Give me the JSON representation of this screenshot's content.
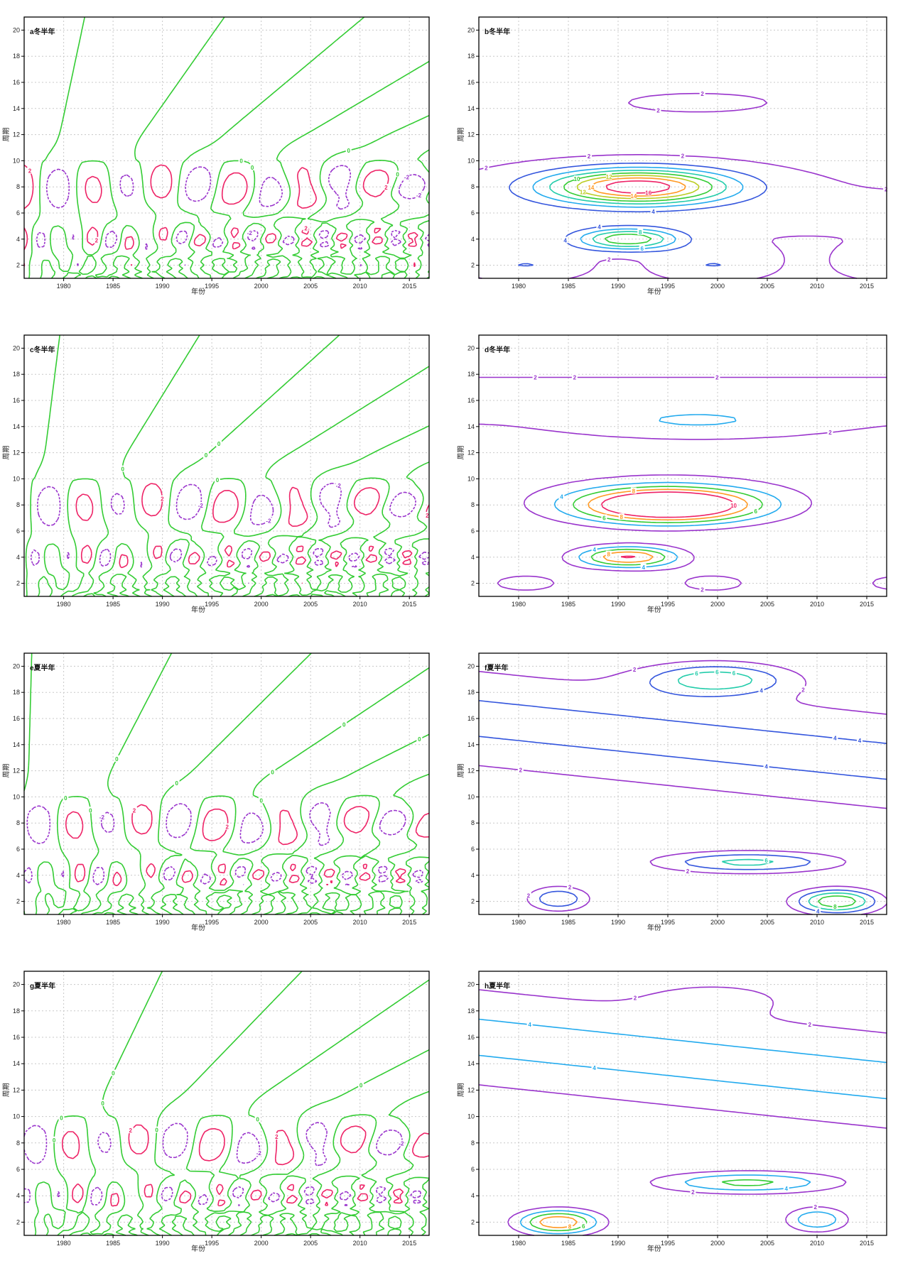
{
  "figure": {
    "panels": [
      {
        "title": "a冬半年"
      },
      {
        "title": "b冬半年"
      },
      {
        "title": "c冬半年"
      },
      {
        "title": "d冬半年"
      },
      {
        "title": "e夏半年"
      },
      {
        "title": "f夏半年"
      },
      {
        "title": "g夏半年"
      },
      {
        "title": "h夏半年"
      }
    ]
  },
  "chart_data": [
    {
      "type": "contour",
      "title": "a冬半年",
      "xlabel": "年份",
      "ylabel": "周期",
      "xlim": [
        1976,
        2017
      ],
      "ylim": [
        1,
        21
      ],
      "xticks": [
        1980,
        1985,
        1990,
        1995,
        2000,
        2005,
        2010,
        2015
      ],
      "yticks": [
        2,
        4,
        6,
        8,
        10,
        12,
        14,
        16,
        18,
        20
      ],
      "grid": true,
      "contour_levels": [
        {
          "value": -2,
          "color": "#9933cc"
        },
        {
          "value": 0,
          "color": "#33cc33"
        },
        {
          "value": 2,
          "color": "#ee2266"
        }
      ],
      "contour_labels": [
        "2",
        "-2",
        "2",
        "-2",
        "2",
        "-2",
        "2",
        "0",
        "0",
        "0",
        "0"
      ]
    },
    {
      "type": "contour",
      "title": "b冬半年",
      "xlabel": "年份",
      "ylabel": "周期",
      "xlim": [
        1976,
        2017
      ],
      "ylim": [
        1,
        21
      ],
      "xticks": [
        1980,
        1985,
        1990,
        1995,
        2000,
        2005,
        2010,
        2015
      ],
      "yticks": [
        2,
        4,
        6,
        8,
        10,
        12,
        14,
        16,
        18,
        20
      ],
      "grid": true,
      "contour_levels": [
        {
          "value": 2,
          "color": "#9933cc"
        },
        {
          "value": 4,
          "color": "#3355dd"
        },
        {
          "value": 6,
          "color": "#22aaee"
        },
        {
          "value": 8,
          "color": "#22ccaa"
        },
        {
          "value": 10,
          "color": "#33cc33"
        },
        {
          "value": 12,
          "color": "#bbcc22"
        },
        {
          "value": 14,
          "color": "#ff9922"
        },
        {
          "value": 16,
          "color": "#ee2266"
        }
      ],
      "peaks": [
        {
          "x": 1992,
          "y": 8,
          "value": 16
        },
        {
          "x": 1991,
          "y": 4,
          "value": 10
        }
      ],
      "contour_labels": [
        "2",
        "2",
        "2",
        "4",
        "6",
        "12",
        "14",
        "16",
        "14",
        "12",
        "4",
        "2",
        "2",
        "8",
        "10",
        "4",
        "2",
        "2"
      ]
    },
    {
      "type": "contour",
      "title": "c冬半年",
      "xlabel": "年份",
      "ylabel": "周期",
      "xlim": [
        1976,
        2017
      ],
      "ylim": [
        1,
        21
      ],
      "xticks": [
        1980,
        1985,
        1990,
        1995,
        2000,
        2005,
        2010,
        2015
      ],
      "yticks": [
        2,
        4,
        6,
        8,
        10,
        12,
        14,
        16,
        18,
        20
      ],
      "grid": true,
      "contour_levels": [
        {
          "value": -2,
          "color": "#9933cc"
        },
        {
          "value": 0,
          "color": "#33cc33"
        },
        {
          "value": 2,
          "color": "#ee2266"
        }
      ],
      "contour_labels": [
        "-2",
        "2",
        "-2",
        "2",
        "-2",
        "0",
        "0",
        "0",
        "0"
      ]
    },
    {
      "type": "contour",
      "title": "d冬半年",
      "xlabel": "年份",
      "ylabel": "周期",
      "xlim": [
        1976,
        2017
      ],
      "ylim": [
        1,
        21
      ],
      "xticks": [
        1980,
        1985,
        1990,
        1995,
        2000,
        2005,
        2010,
        2015
      ],
      "yticks": [
        2,
        4,
        6,
        8,
        10,
        12,
        14,
        16,
        18,
        20
      ],
      "grid": true,
      "contour_levels": [
        {
          "value": 2,
          "color": "#9933cc"
        },
        {
          "value": 4,
          "color": "#22aaee"
        },
        {
          "value": 6,
          "color": "#33cc33"
        },
        {
          "value": 8,
          "color": "#ff9922"
        },
        {
          "value": 10,
          "color": "#ee2266"
        }
      ],
      "peaks": [
        {
          "x": 1994,
          "y": 7,
          "value": 10
        }
      ],
      "contour_labels": [
        "2",
        "2",
        "4",
        "2",
        "4",
        "6",
        "8",
        "10",
        "8",
        "6",
        "8",
        "4",
        "2",
        "2"
      ]
    },
    {
      "type": "contour",
      "title": "e夏半年",
      "xlabel": "年份",
      "ylabel": "周期",
      "xlim": [
        1976,
        2017
      ],
      "ylim": [
        1,
        21
      ],
      "xticks": [
        1980,
        1985,
        1990,
        1995,
        2000,
        2005,
        2010,
        2015
      ],
      "yticks": [
        2,
        4,
        6,
        8,
        10,
        12,
        14,
        16,
        18,
        20
      ],
      "grid": true,
      "contour_levels": [
        {
          "value": -2,
          "color": "#9933cc"
        },
        {
          "value": 0,
          "color": "#33cc33"
        },
        {
          "value": 2,
          "color": "#ee2266"
        }
      ],
      "contour_labels": [
        "2",
        "-2",
        "2",
        "0",
        "0",
        "0",
        "0",
        "0",
        "0",
        "0",
        "0"
      ]
    },
    {
      "type": "contour",
      "title": "f夏半年",
      "xlabel": "年份",
      "ylabel": "周期",
      "xlim": [
        1976,
        2017
      ],
      "ylim": [
        1,
        21
      ],
      "xticks": [
        1980,
        1985,
        1990,
        1995,
        2000,
        2005,
        2010,
        2015
      ],
      "yticks": [
        2,
        4,
        6,
        8,
        10,
        12,
        14,
        16,
        18,
        20
      ],
      "grid": true,
      "contour_levels": [
        {
          "value": 2,
          "color": "#9933cc"
        },
        {
          "value": 4,
          "color": "#3355dd"
        },
        {
          "value": 6,
          "color": "#22ccaa"
        },
        {
          "value": 8,
          "color": "#33cc33"
        },
        {
          "value": 10,
          "color": "#ff9922"
        }
      ],
      "peaks": [
        {
          "x": 2012,
          "y": 2,
          "value": 10
        }
      ],
      "contour_labels": [
        "6",
        "4",
        "2",
        "2",
        "4",
        "6",
        "4",
        "2",
        "2",
        "2",
        "4",
        "2",
        "8",
        "6",
        "6",
        "4",
        "10"
      ]
    },
    {
      "type": "contour",
      "title": "g夏半年",
      "xlabel": "年份",
      "ylabel": "周期",
      "xlim": [
        1976,
        2017
      ],
      "ylim": [
        1,
        21
      ],
      "xticks": [
        1980,
        1985,
        1990,
        1995,
        2000,
        2005,
        2010,
        2015
      ],
      "yticks": [
        2,
        4,
        6,
        8,
        10,
        12,
        14,
        16,
        18,
        20
      ],
      "grid": true,
      "contour_levels": [
        {
          "value": -2,
          "color": "#9933cc"
        },
        {
          "value": 0,
          "color": "#33cc33"
        },
        {
          "value": 2,
          "color": "#ee2266"
        }
      ],
      "contour_labels": [
        "2",
        "2",
        "-2",
        "-2",
        "0",
        "0",
        "0",
        "0",
        "0",
        "0",
        "0"
      ]
    },
    {
      "type": "contour",
      "title": "h夏半年",
      "xlabel": "年份",
      "ylabel": "周期",
      "xlim": [
        1976,
        2017
      ],
      "ylim": [
        1,
        21
      ],
      "xticks": [
        1980,
        1985,
        1990,
        1995,
        2000,
        2005,
        2010,
        2015
      ],
      "yticks": [
        2,
        4,
        6,
        8,
        10,
        12,
        14,
        16,
        18,
        20
      ],
      "grid": true,
      "contour_levels": [
        {
          "value": 2,
          "color": "#9933cc"
        },
        {
          "value": 4,
          "color": "#22aaee"
        },
        {
          "value": 6,
          "color": "#33cc33"
        },
        {
          "value": 8,
          "color": "#ff9922"
        },
        {
          "value": 10,
          "color": "#ee2266"
        }
      ],
      "peaks": [
        {
          "x": 1984,
          "y": 2,
          "value": 10
        }
      ],
      "contour_labels": [
        "4",
        "2",
        "2",
        "4",
        "6",
        "8",
        "4",
        "2",
        "2"
      ]
    }
  ]
}
